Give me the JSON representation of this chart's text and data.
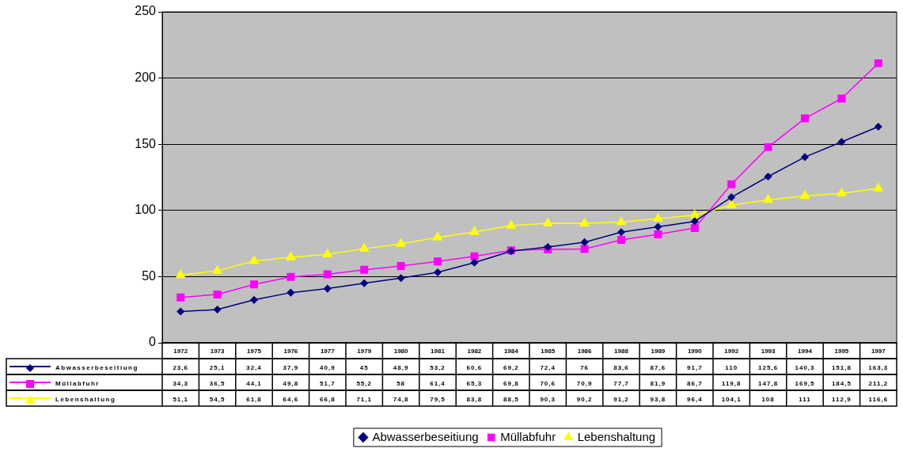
{
  "chart_data": {
    "type": "line",
    "categories": [
      "1972",
      "1973",
      "1975",
      "1976",
      "1977",
      "1979",
      "1980",
      "1981",
      "1982",
      "1984",
      "1985",
      "1986",
      "1988",
      "1989",
      "1990",
      "1992",
      "1993",
      "1994",
      "1995",
      "1997"
    ],
    "series": [
      {
        "name": "Abwasserbeseitiung",
        "color": "#000080",
        "marker": "diamond",
        "values": [
          23.6,
          25.1,
          32.4,
          37.9,
          40.9,
          45,
          48.9,
          53.2,
          60.6,
          69.2,
          72.4,
          76,
          83.6,
          87.6,
          91.7,
          110,
          125.6,
          140.3,
          151.8,
          163.3
        ],
        "value_labels": [
          "23,6",
          "25,1",
          "32,4",
          "37,9",
          "40,9",
          "45",
          "48,9",
          "53,2",
          "60,6",
          "69,2",
          "72,4",
          "76",
          "83,6",
          "87,6",
          "91,7",
          "110",
          "125,6",
          "140,3",
          "151,8",
          "163,3"
        ]
      },
      {
        "name": "Müllabfuhr",
        "color": "#ff00ff",
        "marker": "square",
        "values": [
          34.3,
          36.5,
          44.1,
          49.8,
          51.7,
          55.2,
          58,
          61.4,
          65.3,
          69.8,
          70.6,
          70.9,
          77.7,
          81.9,
          86.7,
          119.8,
          147.8,
          169.5,
          184.5,
          211.2
        ],
        "value_labels": [
          "34,3",
          "36,5",
          "44,1",
          "49,8",
          "51,7",
          "55,2",
          "58",
          "61,4",
          "65,3",
          "69,8",
          "70,6",
          "70,9",
          "77,7",
          "81,9",
          "86,7",
          "119,8",
          "147,8",
          "169,5",
          "184,5",
          "211,2"
        ]
      },
      {
        "name": "Lebenshaltung",
        "color": "#ffff00",
        "marker": "triangle",
        "values": [
          51.1,
          54.5,
          61.8,
          64.6,
          66.8,
          71.1,
          74.8,
          79.5,
          83.8,
          88.5,
          90.3,
          90.2,
          91.2,
          93.8,
          96.4,
          104.1,
          108,
          111,
          112.9,
          116.6
        ],
        "value_labels": [
          "51,1",
          "54,5",
          "61,8",
          "64,6",
          "66,8",
          "71,1",
          "74,8",
          "79,5",
          "83,8",
          "88,5",
          "90,3",
          "90,2",
          "91,2",
          "93,8",
          "96,4",
          "104,1",
          "108",
          "111",
          "112,9",
          "116,6"
        ]
      }
    ],
    "ylim": [
      0,
      250
    ],
    "yticks": [
      0,
      50,
      100,
      150,
      200,
      250
    ],
    "grid": "y",
    "legend": "bottom"
  }
}
